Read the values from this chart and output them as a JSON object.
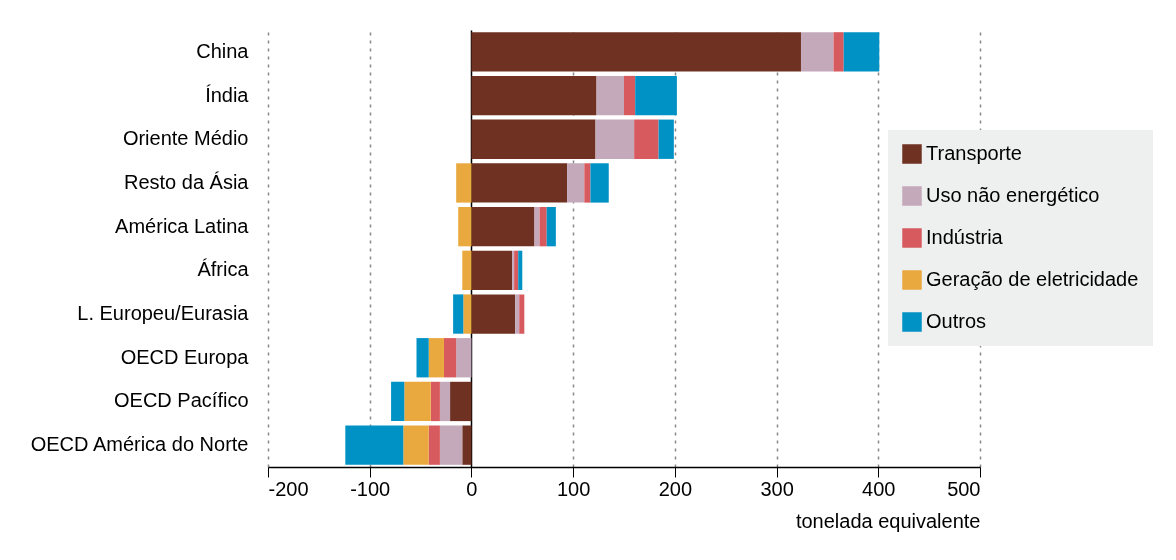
{
  "chart_data": {
    "type": "bar",
    "orientation": "horizontal",
    "stacked": true,
    "categories": [
      "China",
      "Índia",
      "Oriente Médio",
      "Resto da Ásia",
      "América Latina",
      "África",
      "L. Europeu/Eurasia",
      "OECD Europa",
      "OECD Pacífico",
      "OECD América do Norte"
    ],
    "series": [
      {
        "name": "Transporte",
        "color": "#6f3222",
        "values": [
          324,
          123,
          122,
          94,
          62,
          40,
          43,
          0,
          -21,
          -9
        ]
      },
      {
        "name": "Uso não energético",
        "color": "#c4a9bb",
        "values": [
          32,
          27,
          38,
          17,
          5,
          2,
          4,
          -15,
          -10,
          -22
        ]
      },
      {
        "name": "Indústria",
        "color": "#d75a5f",
        "values": [
          10,
          11,
          24,
          6,
          7,
          4,
          5,
          -12,
          -9,
          -11
        ]
      },
      {
        "name": "Geração de eletricidade",
        "color": "#eaa93f",
        "values": [
          0,
          0,
          0,
          -15,
          -13,
          -9,
          -8,
          -15,
          -26,
          -25
        ]
      },
      {
        "name": "Outros",
        "color": "#0092c5",
        "values": [
          35,
          41,
          15,
          18,
          9,
          4,
          -10,
          -12,
          -13,
          -57
        ]
      }
    ],
    "xlim": [
      -200,
      500
    ],
    "xticks": [
      -200,
      -100,
      0,
      100,
      200,
      300,
      400,
      500
    ],
    "xlabel": "tonelada equivalente",
    "grid": "x",
    "legend": "right"
  }
}
